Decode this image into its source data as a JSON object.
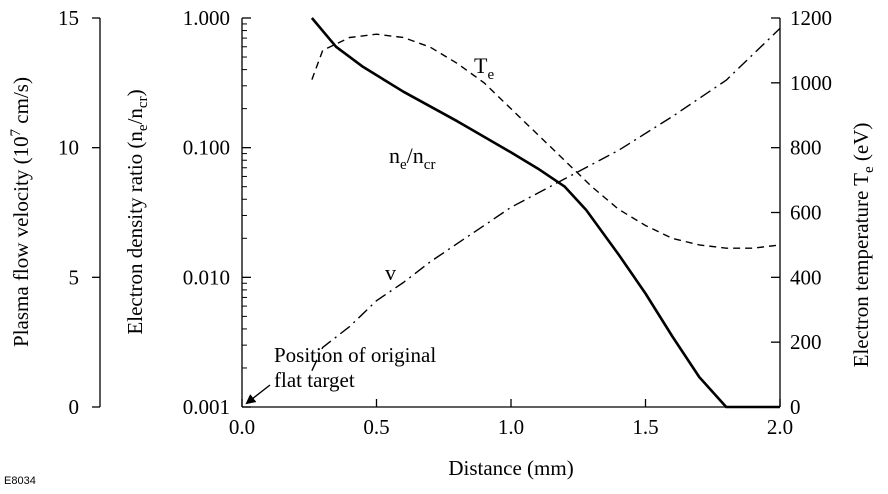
{
  "chart_data": {
    "type": "line",
    "figure_id": "E8034",
    "xlabel": "Distance (mm)",
    "xlim": [
      0.0,
      2.0
    ],
    "x_ticks": [
      "0.0",
      "0.5",
      "1.0",
      "1.5",
      "2.0"
    ],
    "axes": {
      "velocity": {
        "label": "Plasma flow velocity (10",
        "label_sup": "7",
        "label_tail": " cm/s)",
        "lim": [
          0,
          15
        ],
        "ticks": [
          "15",
          "10",
          "5",
          "0"
        ]
      },
      "density": {
        "label_prefix": "Electron density ratio (n",
        "label_sub1": "e",
        "label_mid": "/n",
        "label_sub2": "cr",
        "label_suffix": ")",
        "lim": [
          0.001,
          1.0
        ],
        "scale": "log",
        "ticks": [
          "1.000",
          "0.100",
          "0.010",
          "0.001"
        ]
      },
      "temperature": {
        "label": "Electron temperature T",
        "label_sub": "e",
        "label_tail": " (eV)",
        "lim": [
          0,
          1200
        ],
        "ticks": [
          "1200",
          "1000",
          "800",
          "600",
          "400",
          "200",
          "0"
        ]
      }
    },
    "series": [
      {
        "name": "n",
        "name_sub1": "e",
        "name_mid": "/n",
        "name_sub2": "cr",
        "axis": "density",
        "style": "solid",
        "x": [
          0.26,
          0.35,
          0.45,
          0.6,
          0.8,
          1.0,
          1.1,
          1.2,
          1.28,
          1.4,
          1.5,
          1.6,
          1.7,
          1.8,
          1.9,
          1.95,
          2.0
        ],
        "y": [
          1.0,
          0.6,
          0.42,
          0.27,
          0.16,
          0.092,
          0.069,
          0.05,
          0.033,
          0.015,
          0.0075,
          0.0035,
          0.0017,
          0.0008,
          0.0003,
          0.00012,
          0.0001
        ]
      },
      {
        "name": "T",
        "name_sub": "e",
        "axis": "temperature",
        "style": "dashed",
        "x": [
          0.26,
          0.3,
          0.4,
          0.5,
          0.6,
          0.7,
          0.8,
          0.9,
          1.0,
          1.1,
          1.2,
          1.3,
          1.4,
          1.5,
          1.6,
          1.7,
          1.8,
          1.9,
          2.0
        ],
        "y": [
          1010,
          1100,
          1140,
          1150,
          1140,
          1110,
          1060,
          1000,
          920,
          840,
          760,
          680,
          610,
          560,
          520,
          500,
          490,
          490,
          500
        ]
      },
      {
        "name": "v",
        "axis": "velocity",
        "style": "dashdot",
        "x": [
          0.26,
          0.3,
          0.4,
          0.5,
          0.6,
          0.7,
          0.8,
          0.9,
          1.0,
          1.2,
          1.4,
          1.6,
          1.8,
          2.0
        ],
        "y": [
          1.4,
          2.3,
          3.1,
          4.1,
          4.8,
          5.6,
          6.3,
          7.0,
          7.7,
          8.8,
          9.9,
          11.2,
          12.6,
          14.6
        ]
      }
    ],
    "annotation": {
      "line1": "Position of original",
      "line2": "flat target"
    }
  }
}
